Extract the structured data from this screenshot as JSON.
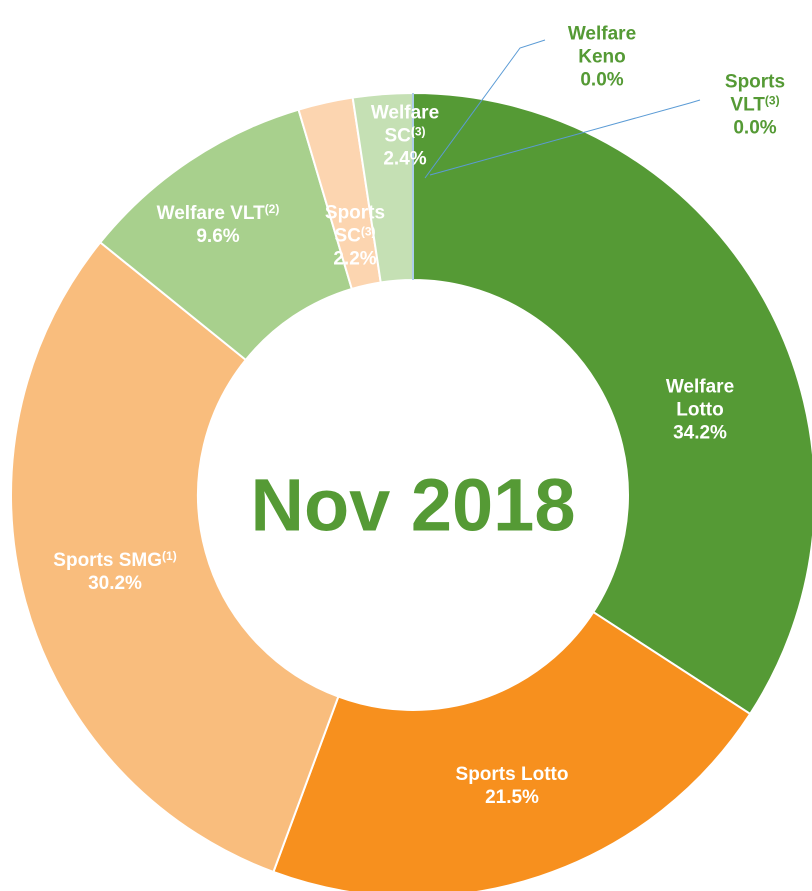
{
  "chart_data": {
    "type": "donut",
    "center_label": "Nov 2018",
    "categories": [
      "Welfare Lotto",
      "Sports Lotto",
      "Sports SMG",
      "Welfare VLT",
      "Sports SC",
      "Welfare SC",
      "Welfare Keno",
      "Sports VLT"
    ],
    "category_notes": [
      null,
      null,
      "(1)",
      "(2)",
      "(3)",
      "(3)",
      null,
      "(3)"
    ],
    "values": [
      34.2,
      21.5,
      30.2,
      9.6,
      2.2,
      2.4,
      0.0,
      0.0
    ],
    "value_labels": [
      "34.2%",
      "21.5%",
      "30.2%",
      "9.6%",
      "2.2%",
      "2.4%",
      "0.0%",
      "0.0%"
    ],
    "colors": [
      "#559a35",
      "#f7901e",
      "#f9bd7d",
      "#a8d08d",
      "#fcd5b0",
      "#c5e0b4",
      "#5b9bd5",
      "#5b9bd5"
    ]
  }
}
